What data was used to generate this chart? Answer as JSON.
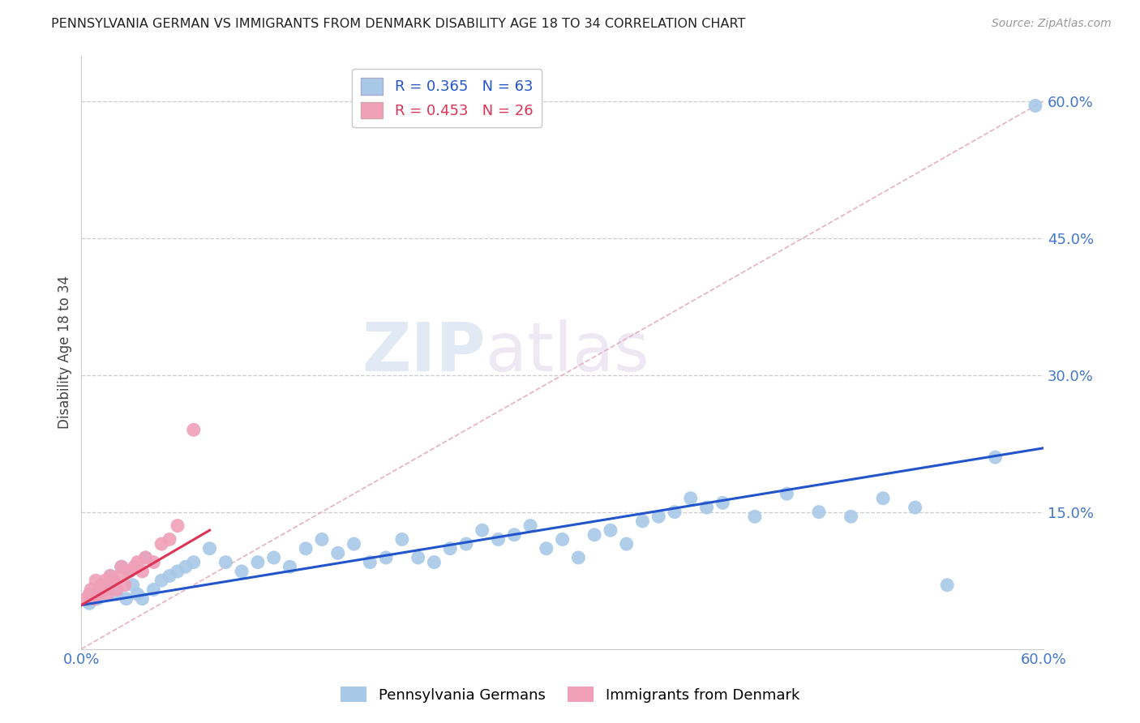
{
  "title": "PENNSYLVANIA GERMAN VS IMMIGRANTS FROM DENMARK DISABILITY AGE 18 TO 34 CORRELATION CHART",
  "source": "Source: ZipAtlas.com",
  "xlabel": "",
  "ylabel": "Disability Age 18 to 34",
  "xmin": 0.0,
  "xmax": 0.6,
  "ymin": 0.0,
  "ymax": 0.65,
  "ytick_positions": [
    0.15,
    0.3,
    0.45,
    0.6
  ],
  "ytick_labels": [
    "15.0%",
    "30.0%",
    "45.0%",
    "60.0%"
  ],
  "xtick_positions": [
    0.0,
    0.6
  ],
  "xtick_labels": [
    "0.0%",
    "60.0%"
  ],
  "legend1_label": "Pennsylvania Germans",
  "legend2_label": "Immigrants from Denmark",
  "r1": 0.365,
  "n1": 63,
  "r2": 0.453,
  "n2": 26,
  "color1": "#a8c8e8",
  "color2": "#f0a0b8",
  "trendline1_color": "#2255cc",
  "trendline2_color": "#dd3355",
  "diagonal_color": "#e8b0c0",
  "background_color": "#ffffff",
  "watermark_zip": "ZIP",
  "watermark_atlas": "atlas",
  "scatter1_x": [
    0.005,
    0.008,
    0.01,
    0.012,
    0.015,
    0.018,
    0.02,
    0.022,
    0.025,
    0.028,
    0.03,
    0.032,
    0.035,
    0.038,
    0.04,
    0.045,
    0.05,
    0.055,
    0.06,
    0.065,
    0.07,
    0.08,
    0.09,
    0.1,
    0.11,
    0.12,
    0.13,
    0.14,
    0.15,
    0.16,
    0.17,
    0.18,
    0.19,
    0.2,
    0.21,
    0.22,
    0.23,
    0.24,
    0.25,
    0.26,
    0.27,
    0.28,
    0.29,
    0.3,
    0.31,
    0.32,
    0.33,
    0.34,
    0.35,
    0.36,
    0.37,
    0.38,
    0.39,
    0.4,
    0.42,
    0.44,
    0.46,
    0.48,
    0.5,
    0.52,
    0.54,
    0.57,
    0.595
  ],
  "scatter1_y": [
    0.05,
    0.06,
    0.055,
    0.07,
    0.065,
    0.08,
    0.075,
    0.06,
    0.09,
    0.055,
    0.085,
    0.07,
    0.06,
    0.055,
    0.1,
    0.065,
    0.075,
    0.08,
    0.085,
    0.09,
    0.095,
    0.11,
    0.095,
    0.085,
    0.095,
    0.1,
    0.09,
    0.11,
    0.12,
    0.105,
    0.115,
    0.095,
    0.1,
    0.12,
    0.1,
    0.095,
    0.11,
    0.115,
    0.13,
    0.12,
    0.125,
    0.135,
    0.11,
    0.12,
    0.1,
    0.125,
    0.13,
    0.115,
    0.14,
    0.145,
    0.15,
    0.165,
    0.155,
    0.16,
    0.145,
    0.17,
    0.15,
    0.145,
    0.165,
    0.155,
    0.07,
    0.21,
    0.595
  ],
  "scatter2_x": [
    0.003,
    0.005,
    0.006,
    0.008,
    0.009,
    0.01,
    0.012,
    0.013,
    0.015,
    0.016,
    0.018,
    0.02,
    0.022,
    0.024,
    0.025,
    0.027,
    0.03,
    0.033,
    0.035,
    0.038,
    0.04,
    0.045,
    0.05,
    0.055,
    0.06,
    0.07
  ],
  "scatter2_y": [
    0.055,
    0.06,
    0.065,
    0.055,
    0.075,
    0.06,
    0.065,
    0.07,
    0.075,
    0.06,
    0.08,
    0.075,
    0.065,
    0.08,
    0.09,
    0.07,
    0.085,
    0.09,
    0.095,
    0.085,
    0.1,
    0.095,
    0.115,
    0.12,
    0.135,
    0.24
  ],
  "trendline1_x": [
    0.0,
    0.6
  ],
  "trendline1_y": [
    0.048,
    0.22
  ],
  "trendline2_x": [
    0.0,
    0.08
  ],
  "trendline2_y": [
    0.048,
    0.13
  ]
}
